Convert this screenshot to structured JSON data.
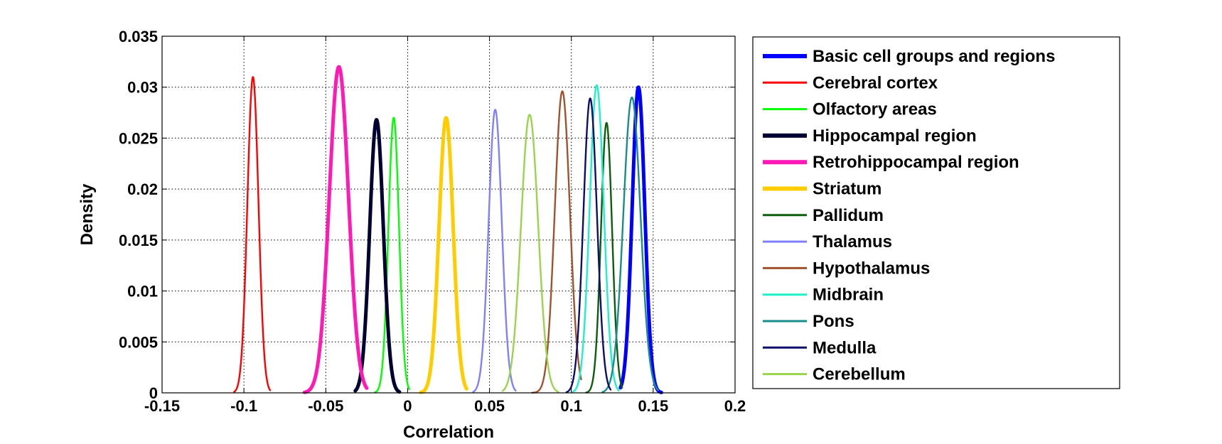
{
  "chart_data": {
    "type": "line",
    "title": "",
    "xlabel": "Correlation",
    "ylabel": "Density",
    "xlim": [
      -0.15,
      0.2
    ],
    "ylim": [
      0,
      0.035
    ],
    "xticks": [
      -0.15,
      -0.1,
      -0.05,
      0,
      0.05,
      0.1,
      0.15,
      0.2
    ],
    "xtick_labels": [
      "-0.15",
      "-0.1",
      "-0.05",
      "0",
      "0.05",
      "0.1",
      "0.15",
      "0.2"
    ],
    "yticks": [
      0,
      0.005,
      0.01,
      0.015,
      0.02,
      0.025,
      0.03,
      0.035
    ],
    "ytick_labels": [
      "0",
      "0.005",
      "0.01",
      "0.015",
      "0.02",
      "0.025",
      "0.03",
      "0.035"
    ],
    "grid": true,
    "legend_position": "outside-right",
    "series": [
      {
        "name": "Basic cell groups and regions",
        "color": "#0000ff",
        "thick": true,
        "peak_x": 0.141,
        "peak_y": 0.03,
        "x_min": 0.13,
        "x_max": 0.155
      },
      {
        "name": "Cerebral cortex",
        "color": "#ff0000",
        "thick": false,
        "peak_x": -0.0945,
        "peak_y": 0.031,
        "x_min": -0.106,
        "x_max": -0.084
      },
      {
        "name": "Olfactory areas",
        "color": "#00ff00",
        "thick": false,
        "peak_x": -0.0085,
        "peak_y": 0.027,
        "x_min": -0.02,
        "x_max": 0.001
      },
      {
        "name": "Hippocampal region",
        "color": "#000033",
        "thick": true,
        "peak_x": -0.019,
        "peak_y": 0.0268,
        "x_min": -0.032,
        "x_max": -0.005
      },
      {
        "name": "Retrohippocampal region",
        "color": "#ff19b5",
        "thick": true,
        "peak_x": -0.042,
        "peak_y": 0.032,
        "x_min": -0.063,
        "x_max": -0.025
      },
      {
        "name": "Striatum",
        "color": "#ffcc00",
        "thick": true,
        "peak_x": 0.0235,
        "peak_y": 0.027,
        "x_min": 0.008,
        "x_max": 0.036
      },
      {
        "name": "Pallidum",
        "color": "#0b5e0b",
        "thick": false,
        "peak_x": 0.1215,
        "peak_y": 0.0265,
        "x_min": 0.109,
        "x_max": 0.131
      },
      {
        "name": "Thalamus",
        "color": "#8080ff",
        "thick": false,
        "peak_x": 0.0535,
        "peak_y": 0.0278,
        "x_min": 0.04,
        "x_max": 0.066
      },
      {
        "name": "Hypothalamus",
        "color": "#a0522d",
        "thick": false,
        "peak_x": 0.0945,
        "peak_y": 0.0296,
        "x_min": 0.076,
        "x_max": 0.106
      },
      {
        "name": "Midbrain",
        "color": "#1ef0c8",
        "thick": false,
        "peak_x": 0.1155,
        "peak_y": 0.0302,
        "x_min": 0.101,
        "x_max": 0.129
      },
      {
        "name": "Pons",
        "color": "#198c8c",
        "thick": false,
        "peak_x": 0.137,
        "peak_y": 0.029,
        "x_min": 0.119,
        "x_max": 0.153
      },
      {
        "name": "Medulla",
        "color": "#0d0d6b",
        "thick": false,
        "peak_x": 0.1115,
        "peak_y": 0.0289,
        "x_min": 0.097,
        "x_max": 0.124
      },
      {
        "name": "Cerebellum",
        "color": "#99d44a",
        "thick": false,
        "peak_x": 0.0745,
        "peak_y": 0.0273,
        "x_min": 0.058,
        "x_max": 0.092
      }
    ]
  }
}
